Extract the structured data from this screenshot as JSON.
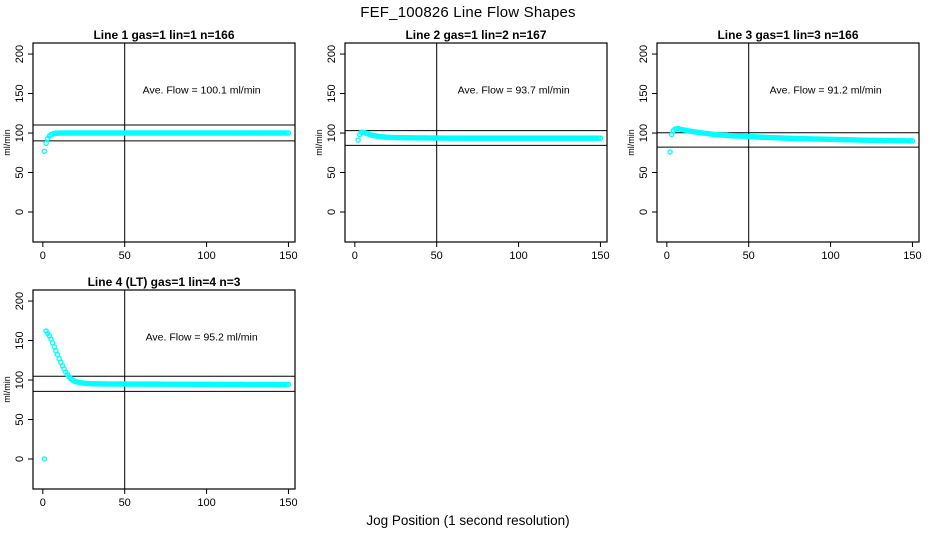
{
  "page": {
    "title": "FEF_100826  Line Flow Shapes",
    "xlabel": "Jog Position (1 second resolution)",
    "background": "#ffffff",
    "axis_color": "#000000"
  },
  "chart_data": [
    {
      "type": "scatter",
      "title": "Line 1 gas=1 lin=1 n=166",
      "n": 166,
      "ave_flow": 100.1,
      "annotation": "Ave. Flow =  100.1  ml/min",
      "ylabel": "ml/min",
      "xticks": [
        0,
        50,
        100,
        150
      ],
      "yticks": [
        0,
        50,
        100,
        150,
        200
      ],
      "xlim": [
        -6,
        154
      ],
      "ylim": [
        -38,
        214
      ],
      "grid": false,
      "vline_x": 50,
      "hlines": [
        110.1,
        90.1
      ],
      "marker": {
        "shape": "open-circle",
        "color": "#00FFFF"
      },
      "point_step_x": 1,
      "anchor_points": [
        [
          1,
          77
        ],
        [
          2,
          87
        ],
        [
          3,
          93
        ],
        [
          4,
          96
        ],
        [
          5,
          98
        ],
        [
          7,
          99.5
        ],
        [
          10,
          100
        ],
        [
          50,
          100
        ],
        [
          100,
          100
        ],
        [
          150,
          100
        ]
      ]
    },
    {
      "type": "scatter",
      "title": "Line 2 gas=1 lin=2 n=167",
      "n": 167,
      "ave_flow": 93.7,
      "annotation": "Ave. Flow =  93.7  ml/min",
      "ylabel": "ml/min",
      "xticks": [
        0,
        50,
        100,
        150
      ],
      "yticks": [
        0,
        50,
        100,
        150,
        200
      ],
      "xlim": [
        -6,
        154
      ],
      "ylim": [
        -38,
        214
      ],
      "grid": false,
      "vline_x": 50,
      "hlines": [
        103.1,
        84.3
      ],
      "marker": {
        "shape": "open-circle",
        "color": "#00FFFF"
      },
      "point_step_x": 1,
      "anchor_points": [
        [
          2,
          91
        ],
        [
          3,
          98
        ],
        [
          4,
          101
        ],
        [
          6,
          100.5
        ],
        [
          8,
          99
        ],
        [
          10,
          97.5
        ],
        [
          15,
          95.5
        ],
        [
          20,
          94.5
        ],
        [
          30,
          94
        ],
        [
          60,
          93.5
        ],
        [
          100,
          93.5
        ],
        [
          150,
          93.5
        ]
      ]
    },
    {
      "type": "scatter",
      "title": "Line 3 gas=1 lin=3 n=166",
      "n": 166,
      "ave_flow": 91.2,
      "annotation": "Ave. Flow =  91.2  ml/min",
      "ylabel": "ml/min",
      "xticks": [
        0,
        50,
        100,
        150
      ],
      "yticks": [
        0,
        50,
        100,
        150,
        200
      ],
      "xlim": [
        -6,
        154
      ],
      "ylim": [
        -38,
        214
      ],
      "grid": false,
      "vline_x": 50,
      "hlines": [
        100.3,
        82.1
      ],
      "marker": {
        "shape": "open-circle",
        "color": "#00FFFF"
      },
      "point_step_x": 1,
      "anchor_points": [
        [
          2,
          76
        ],
        [
          3,
          98
        ],
        [
          4,
          103
        ],
        [
          5,
          105
        ],
        [
          7,
          105.5
        ],
        [
          10,
          104
        ],
        [
          15,
          102
        ],
        [
          20,
          100.5
        ],
        [
          30,
          98
        ],
        [
          40,
          96.5
        ],
        [
          50,
          95.5
        ],
        [
          60,
          94.5
        ],
        [
          80,
          93
        ],
        [
          100,
          92
        ],
        [
          120,
          91
        ],
        [
          150,
          90
        ]
      ]
    },
    {
      "type": "scatter",
      "title": "Line 4 (LT) gas=1 lin=4 n=3",
      "n": 3,
      "ave_flow": 95.2,
      "annotation": "Ave. Flow =  95.2  ml/min",
      "ylabel": "ml/min",
      "xticks": [
        0,
        50,
        100,
        150
      ],
      "yticks": [
        0,
        50,
        100,
        150,
        200
      ],
      "xlim": [
        -6,
        154
      ],
      "ylim": [
        -38,
        214
      ],
      "grid": false,
      "vline_x": 50,
      "hlines": [
        104.7,
        85.7
      ],
      "marker": {
        "shape": "open-circle",
        "color": "#00FFFF"
      },
      "point_step_x": 1,
      "anchor_points": [
        [
          1,
          0
        ],
        [
          2,
          162
        ],
        [
          3,
          159
        ],
        [
          4,
          156
        ],
        [
          5,
          152
        ],
        [
          6,
          147
        ],
        [
          7,
          142
        ],
        [
          8,
          137
        ],
        [
          10,
          127
        ],
        [
          12,
          118
        ],
        [
          14,
          110
        ],
        [
          16,
          104
        ],
        [
          18,
          100
        ],
        [
          20,
          98
        ],
        [
          23,
          96.5
        ],
        [
          26,
          95.8
        ],
        [
          30,
          95.3
        ],
        [
          40,
          95
        ],
        [
          60,
          94.8
        ],
        [
          100,
          94.6
        ],
        [
          150,
          94.2
        ]
      ]
    }
  ]
}
